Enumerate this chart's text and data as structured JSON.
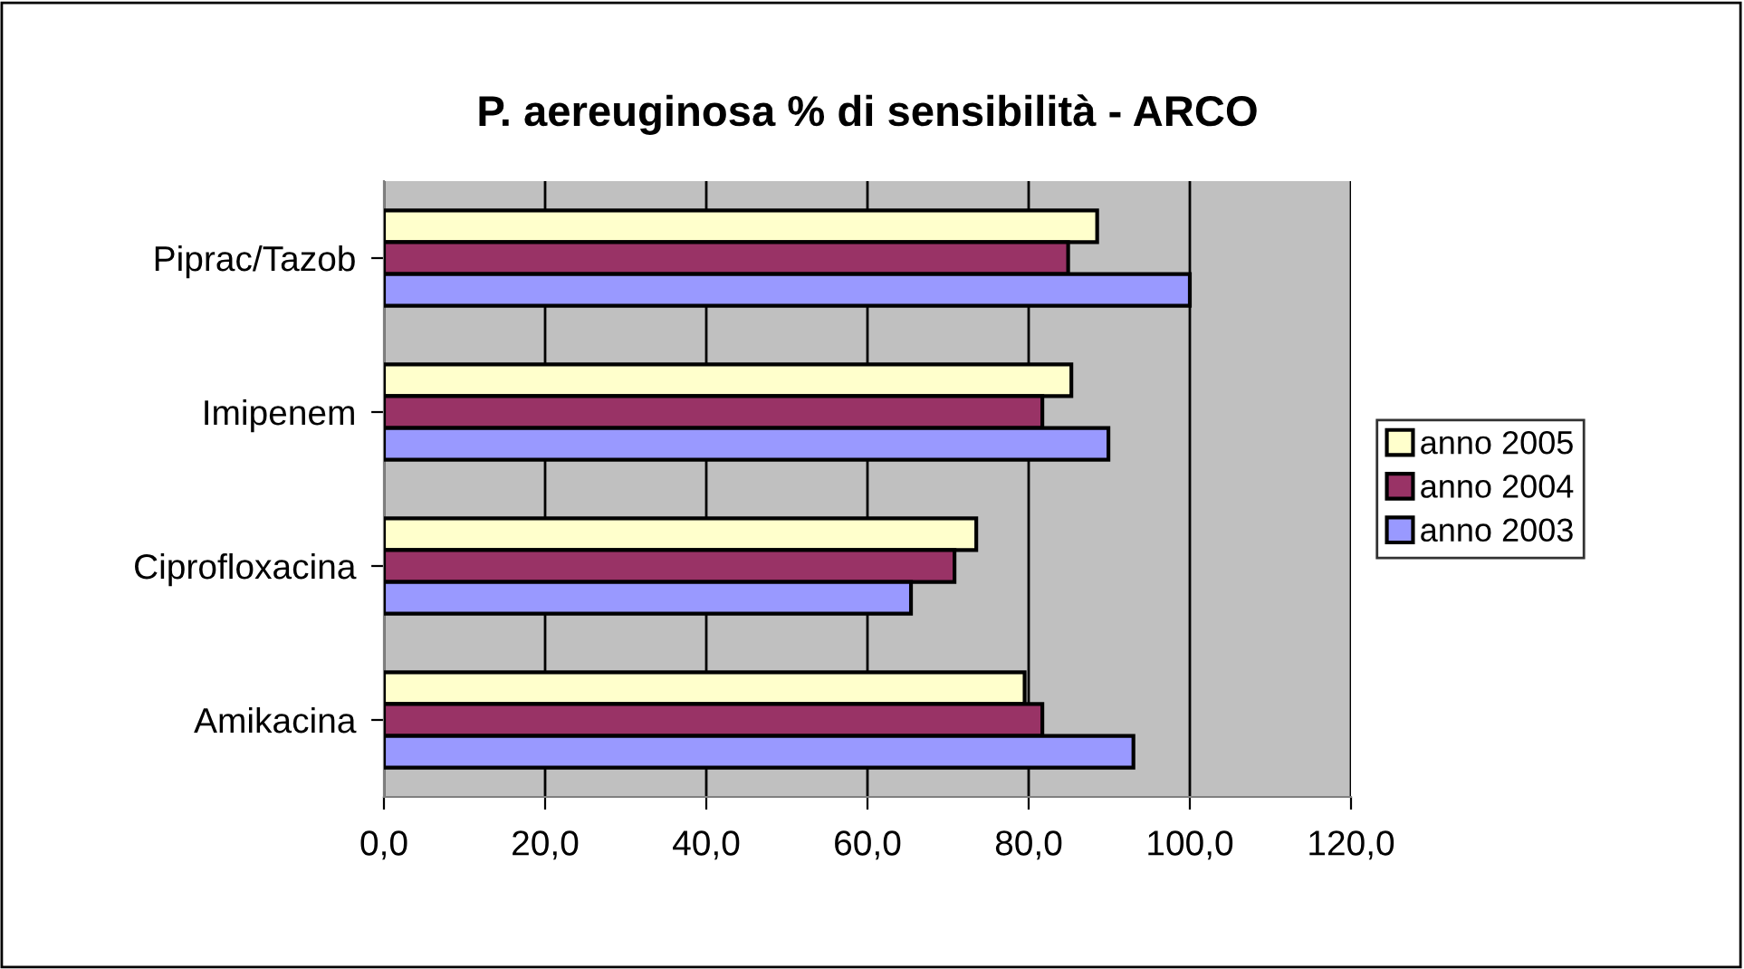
{
  "chart_data": {
    "type": "bar",
    "orientation": "horizontal",
    "title": "P. aereuginosa % di sensibilità - ARCO",
    "categories": [
      "Piprac/Tazob",
      "Imipenem",
      "Ciprofloxacina",
      "Amikacina"
    ],
    "series": [
      {
        "name": "anno 2005",
        "color": "#ffffcc",
        "values": [
          88.5,
          85.3,
          73.5,
          79.5
        ]
      },
      {
        "name": "anno 2004",
        "color": "#993366",
        "values": [
          84.9,
          81.7,
          70.8,
          81.7
        ]
      },
      {
        "name": "anno 2003",
        "color": "#9999ff",
        "values": [
          100,
          89.9,
          65.4,
          93.0
        ]
      }
    ],
    "xlim": [
      0,
      120
    ],
    "xticks": [
      {
        "value": 0,
        "label": "0,0"
      },
      {
        "value": 20,
        "label": "20,0"
      },
      {
        "value": 40,
        "label": "40,0"
      },
      {
        "value": 60,
        "label": "60,0"
      },
      {
        "value": 80,
        "label": "80,0"
      },
      {
        "value": 100,
        "label": "100,0"
      },
      {
        "value": 120,
        "label": "120,0"
      }
    ],
    "grid": "x",
    "legend": "right"
  }
}
